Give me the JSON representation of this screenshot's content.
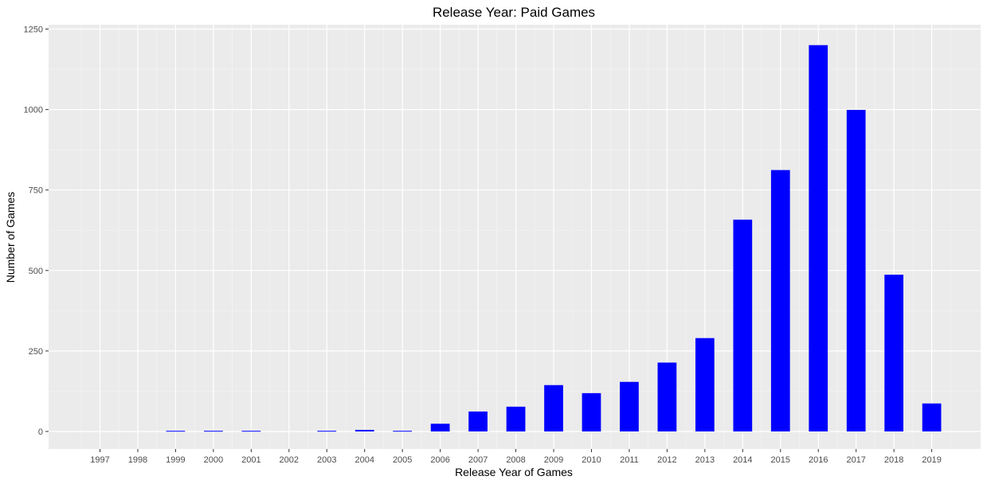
{
  "chart_data": {
    "type": "bar",
    "title": "Release Year: Paid Games",
    "xlabel": "Release Year of Games",
    "ylabel": "Number of Games",
    "categories": [
      "1997",
      "1998",
      "1999",
      "2000",
      "2001",
      "2002",
      "2003",
      "2004",
      "2005",
      "2006",
      "2007",
      "2008",
      "2009",
      "2010",
      "2011",
      "2012",
      "2013",
      "2014",
      "2015",
      "2016",
      "2017",
      "2018",
      "2019"
    ],
    "values": [
      0,
      0,
      2,
      2,
      2,
      0,
      2,
      5,
      2,
      24,
      62,
      77,
      144,
      119,
      154,
      214,
      290,
      658,
      812,
      1200,
      999,
      487,
      87
    ],
    "ylim": [
      0,
      1250
    ],
    "yticks": [
      0,
      250,
      500,
      750,
      1000,
      1250
    ],
    "ytick_labels": [
      "0",
      "250",
      "500",
      "750",
      "1000",
      "1250"
    ],
    "grid": true,
    "bar_color": "#0000ff",
    "panel_color": "#ebebeb",
    "grid_color": "#ffffff"
  }
}
